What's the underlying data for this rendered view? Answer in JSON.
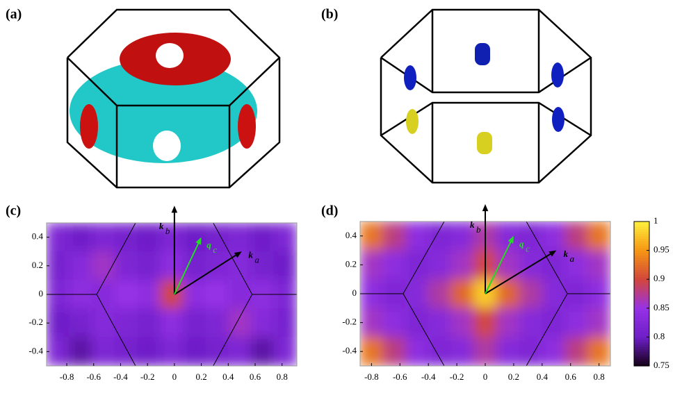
{
  "panel_labels": [
    "(a)",
    "(b)",
    "(c)",
    "(d)"
  ],
  "chart_data": [
    {
      "type": "heatmap",
      "xlim": [
        -0.95,
        0.91
      ],
      "ylim": [
        -0.5,
        0.5
      ],
      "xticks": [
        -0.8,
        -0.6,
        -0.4,
        -0.2,
        0,
        0.2,
        0.4,
        0.6,
        0.8
      ],
      "yticks": [
        -0.4,
        -0.2,
        0,
        0.2,
        0.4
      ],
      "zlim": [
        0.75,
        1
      ],
      "z": [
        [
          0.82,
          0.8,
          0.82,
          0.81,
          0.8,
          0.82,
          0.8,
          0.81,
          0.82,
          0.8,
          0.82
        ],
        [
          0.81,
          0.83,
          0.86,
          0.82,
          0.81,
          0.84,
          0.81,
          0.82,
          0.83,
          0.81,
          0.8
        ],
        [
          0.82,
          0.84,
          0.83,
          0.85,
          0.84,
          0.9,
          0.84,
          0.85,
          0.83,
          0.84,
          0.82
        ],
        [
          0.8,
          0.81,
          0.83,
          0.82,
          0.81,
          0.84,
          0.81,
          0.82,
          0.86,
          0.83,
          0.81
        ],
        [
          0.82,
          0.79,
          0.82,
          0.81,
          0.8,
          0.82,
          0.8,
          0.81,
          0.82,
          0.79,
          0.82
        ]
      ],
      "annotations": [
        {
          "text": "k",
          "sub": "b",
          "color": "#000000"
        },
        {
          "text": "k",
          "sub": "a",
          "color": "#000000"
        },
        {
          "text": "q",
          "sub": "c",
          "color": "#22dd22"
        }
      ]
    },
    {
      "type": "heatmap",
      "xlim": [
        -0.88,
        0.88
      ],
      "ylim": [
        -0.5,
        0.5
      ],
      "xticks": [
        -0.8,
        -0.6,
        -0.4,
        -0.2,
        0,
        0.2,
        0.4,
        0.6,
        0.8
      ],
      "yticks": [
        -0.4,
        -0.2,
        0,
        0.2,
        0.4
      ],
      "zlim": [
        0.75,
        1
      ],
      "colorbar_ticks": [
        0.75,
        0.8,
        0.85,
        0.9,
        0.95,
        1
      ],
      "z": [
        [
          0.93,
          0.88,
          0.84,
          0.82,
          0.83,
          0.87,
          0.83,
          0.82,
          0.84,
          0.88,
          0.93
        ],
        [
          0.86,
          0.84,
          0.82,
          0.83,
          0.86,
          0.9,
          0.86,
          0.83,
          0.82,
          0.84,
          0.86
        ],
        [
          0.84,
          0.82,
          0.83,
          0.87,
          0.92,
          0.98,
          0.92,
          0.87,
          0.83,
          0.82,
          0.84
        ],
        [
          0.86,
          0.84,
          0.82,
          0.83,
          0.86,
          0.9,
          0.86,
          0.83,
          0.82,
          0.84,
          0.86
        ],
        [
          0.93,
          0.88,
          0.84,
          0.82,
          0.83,
          0.87,
          0.83,
          0.82,
          0.84,
          0.88,
          0.93
        ]
      ],
      "annotations": [
        {
          "text": "k",
          "sub": "b",
          "color": "#000000"
        },
        {
          "text": "k",
          "sub": "a",
          "color": "#000000"
        },
        {
          "text": "q",
          "sub": "c",
          "color": "#22dd22"
        }
      ]
    }
  ]
}
